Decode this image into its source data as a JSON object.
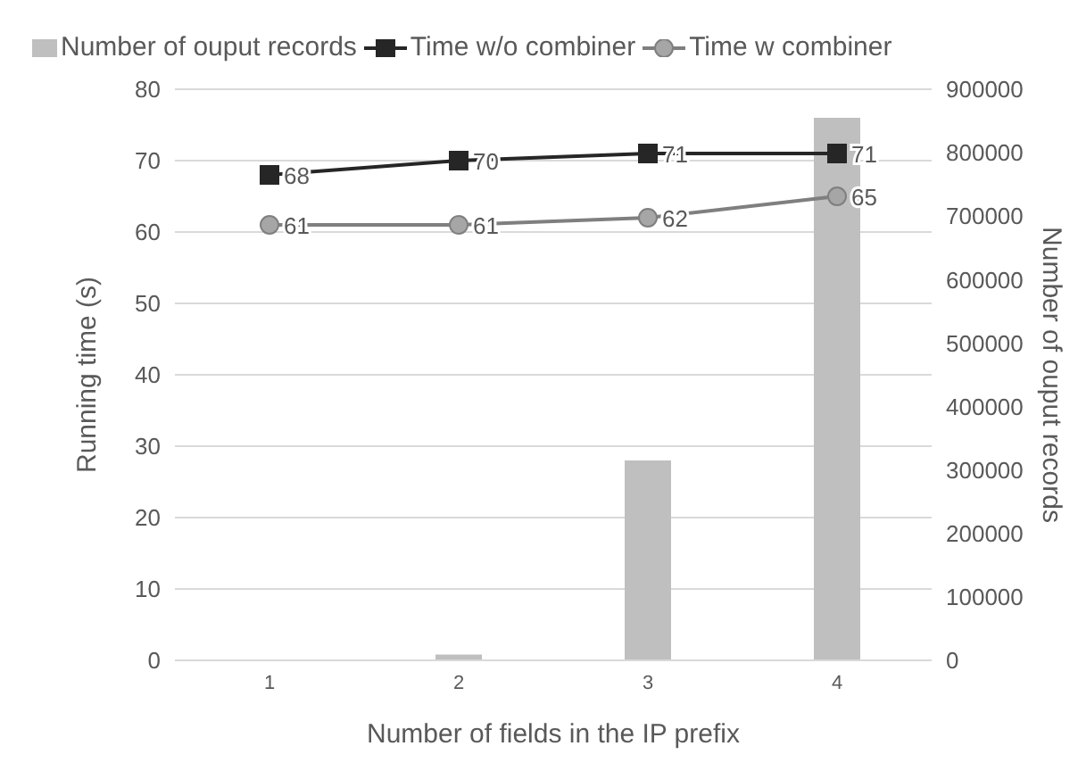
{
  "chart_data": {
    "type": "bar",
    "categories": [
      "1",
      "2",
      "3",
      "4"
    ],
    "xlabel": "Number of fields in the IP prefix",
    "ylabel": "Running time (s)",
    "y2label": "Number of ouput records",
    "series": [
      {
        "name": "Number of ouput records",
        "axis": "y2",
        "color": "#bfbfbf",
        "values": [
          0,
          9000,
          315000,
          855000
        ]
      },
      {
        "name": "Time w/o combiner",
        "type": "line",
        "color": "#262626",
        "marker": "square",
        "values": [
          68,
          70,
          71,
          71
        ],
        "value_labels": [
          "68",
          "70",
          "71",
          "71"
        ]
      },
      {
        "name": "Time w combiner",
        "type": "line",
        "color": "#7f7f7f",
        "marker": "circle",
        "values": [
          61,
          61,
          62,
          65
        ],
        "value_labels": [
          "61",
          "61",
          "62",
          "65"
        ]
      }
    ],
    "ylim": [
      0,
      80
    ],
    "yticks": [
      0,
      10,
      20,
      30,
      40,
      50,
      60,
      70,
      80
    ],
    "y2lim": [
      0,
      900000
    ],
    "y2ticks": [
      0,
      100000,
      200000,
      300000,
      400000,
      500000,
      600000,
      700000,
      800000,
      900000
    ],
    "grid": "y",
    "legend": "top"
  }
}
